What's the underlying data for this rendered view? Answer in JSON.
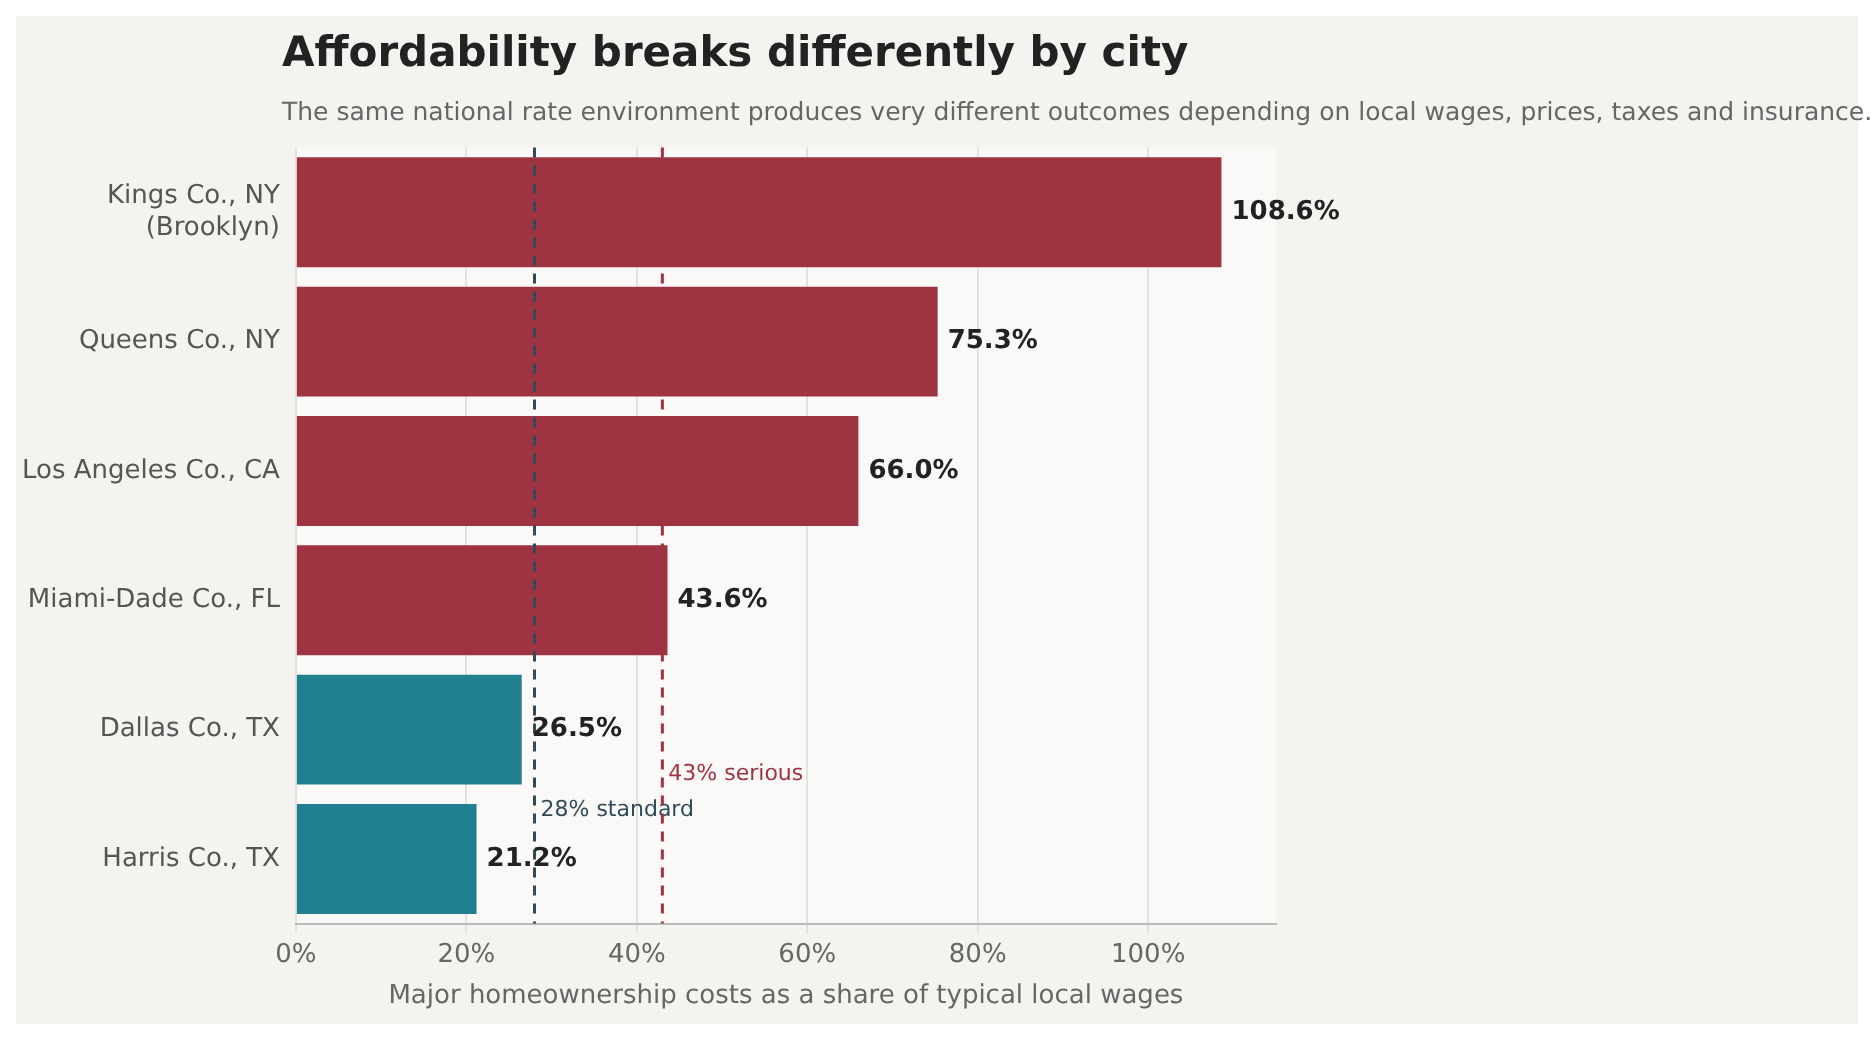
{
  "chart_data": {
    "type": "bar",
    "orientation": "horizontal",
    "title": "Affordability breaks differently by city",
    "subtitle": "The same national rate environment produces very different outcomes depending on local wages, prices, taxes and insurance.",
    "xlabel": "Major homeownership costs as a share of typical local wages",
    "categories": [
      "Kings Co., NY\n(Brooklyn)",
      "Queens Co., NY",
      "Los Angeles Co., CA",
      "Miami-Dade Co., FL",
      "Dallas Co., TX",
      "Harris Co., TX"
    ],
    "values": [
      108.6,
      75.3,
      66.0,
      43.6,
      26.5,
      21.2
    ],
    "value_labels": [
      "108.6%",
      "75.3%",
      "66.0%",
      "43.6%",
      "26.5%",
      "21.2%"
    ],
    "colors": [
      "#9e3342",
      "#9e3342",
      "#9e3342",
      "#9e3342",
      "#20808f",
      "#20808f"
    ],
    "xlim": [
      0,
      115
    ],
    "xticks": [
      {
        "value": 0,
        "label": "0%"
      },
      {
        "value": 20,
        "label": "20%"
      },
      {
        "value": 40,
        "label": "40%"
      },
      {
        "value": 60,
        "label": "60%"
      },
      {
        "value": 80,
        "label": "80%"
      },
      {
        "value": 100,
        "label": "100%"
      }
    ],
    "ref_lines": [
      {
        "axis": "x",
        "value": 28,
        "label": "28% standard",
        "color": "#2f4b5a",
        "line_style": "dashed"
      },
      {
        "axis": "x",
        "value": 43,
        "label": "43% serious",
        "color": "#9e3342",
        "line_style": "dashed"
      }
    ],
    "grid": "x",
    "legend": false
  }
}
